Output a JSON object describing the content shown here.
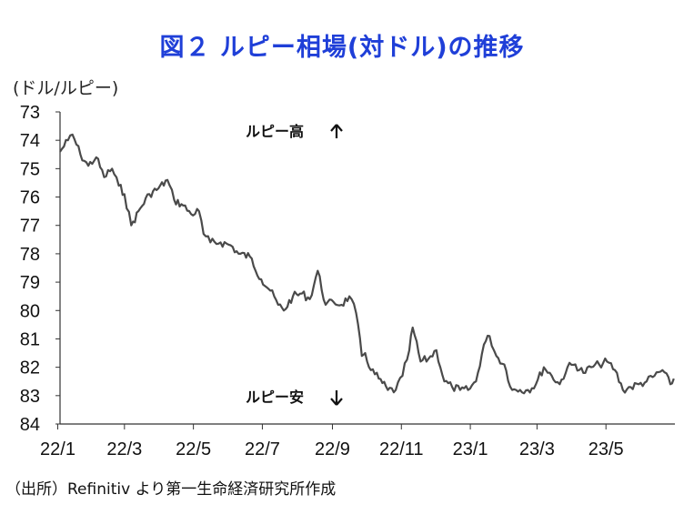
{
  "chart_data": {
    "type": "line",
    "title": "図２ ルピー相場(対ドル)の推移",
    "unit_label": "(ドル/ルピー)",
    "source": "（出所）Refinitiv より第一生命経済研究所作成",
    "y_axis": {
      "inverted": true,
      "ylim": [
        73,
        84
      ],
      "ticks": [
        "73",
        "74",
        "75",
        "76",
        "77",
        "78",
        "79",
        "80",
        "81",
        "82",
        "83",
        "84"
      ]
    },
    "x_axis": {
      "range": [
        "2022-01-03",
        "2023-07-01"
      ],
      "tick_labels": [
        "22/1",
        "22/3",
        "22/5",
        "22/7",
        "22/9",
        "22/11",
        "23/1",
        "23/3",
        "23/5"
      ],
      "tick_dates": [
        "2022-01-01",
        "2022-03-01",
        "2022-05-01",
        "2022-07-01",
        "2022-09-01",
        "2022-11-01",
        "2023-01-01",
        "2023-03-01",
        "2023-05-01"
      ]
    },
    "grid": false,
    "annotations": {
      "top": "ルピー高",
      "bottom": "ルピー安"
    },
    "series": [
      {
        "x": [
          "2022-01-03",
          "2022-01-10",
          "2022-01-14",
          "2022-01-21",
          "2022-01-28",
          "2022-02-04",
          "2022-02-11",
          "2022-02-18",
          "2022-02-24",
          "2022-03-01",
          "2022-03-07",
          "2022-03-15",
          "2022-03-23",
          "2022-03-31",
          "2022-04-08",
          "2022-04-14",
          "2022-04-22",
          "2022-04-29",
          "2022-05-06",
          "2022-05-10",
          "2022-05-16",
          "2022-05-25",
          "2022-06-03",
          "2022-06-10",
          "2022-06-20",
          "2022-06-30",
          "2022-07-08",
          "2022-07-15",
          "2022-07-20",
          "2022-07-28",
          "2022-08-05",
          "2022-08-12",
          "2022-08-19",
          "2022-08-26",
          "2022-09-02",
          "2022-09-09",
          "2022-09-16",
          "2022-09-22",
          "2022-09-27",
          "2022-09-30",
          "2022-10-05",
          "2022-10-12",
          "2022-10-20",
          "2022-10-27",
          "2022-11-02",
          "2022-11-08",
          "2022-11-11",
          "2022-11-18",
          "2022-11-25",
          "2022-12-02",
          "2022-12-09",
          "2022-12-16",
          "2022-12-23",
          "2022-12-30",
          "2023-01-06",
          "2023-01-13",
          "2023-01-18",
          "2023-01-24",
          "2023-01-31",
          "2023-02-07",
          "2023-02-14",
          "2023-02-21",
          "2023-02-28",
          "2023-03-07",
          "2023-03-14",
          "2023-03-21",
          "2023-03-28",
          "2023-04-04",
          "2023-04-11",
          "2023-04-18",
          "2023-04-25",
          "2023-05-02",
          "2023-05-09",
          "2023-05-16",
          "2023-05-23",
          "2023-05-30",
          "2023-06-06",
          "2023-06-13",
          "2023-06-20",
          "2023-06-27",
          "2023-06-30"
        ],
        "values": [
          74.4,
          74.0,
          73.8,
          74.5,
          74.9,
          74.6,
          75.3,
          75.0,
          75.6,
          75.9,
          77.0,
          76.4,
          75.9,
          75.7,
          75.4,
          76.1,
          76.3,
          76.6,
          76.5,
          77.3,
          77.6,
          77.6,
          77.7,
          78.0,
          78.1,
          78.9,
          79.3,
          79.8,
          80.0,
          79.5,
          79.4,
          79.6,
          78.6,
          79.8,
          79.7,
          79.8,
          79.5,
          80.1,
          81.6,
          81.5,
          82.1,
          82.4,
          82.8,
          82.8,
          82.3,
          81.4,
          80.6,
          81.8,
          81.7,
          81.4,
          82.5,
          82.7,
          82.8,
          82.8,
          82.5,
          81.2,
          80.9,
          81.6,
          81.9,
          82.8,
          82.8,
          82.8,
          82.6,
          82.0,
          82.3,
          82.6,
          82.0,
          81.9,
          82.2,
          82.0,
          81.9,
          81.8,
          82.1,
          82.8,
          82.7,
          82.6,
          82.5,
          82.3,
          82.1,
          82.6,
          82.4
        ]
      }
    ]
  }
}
